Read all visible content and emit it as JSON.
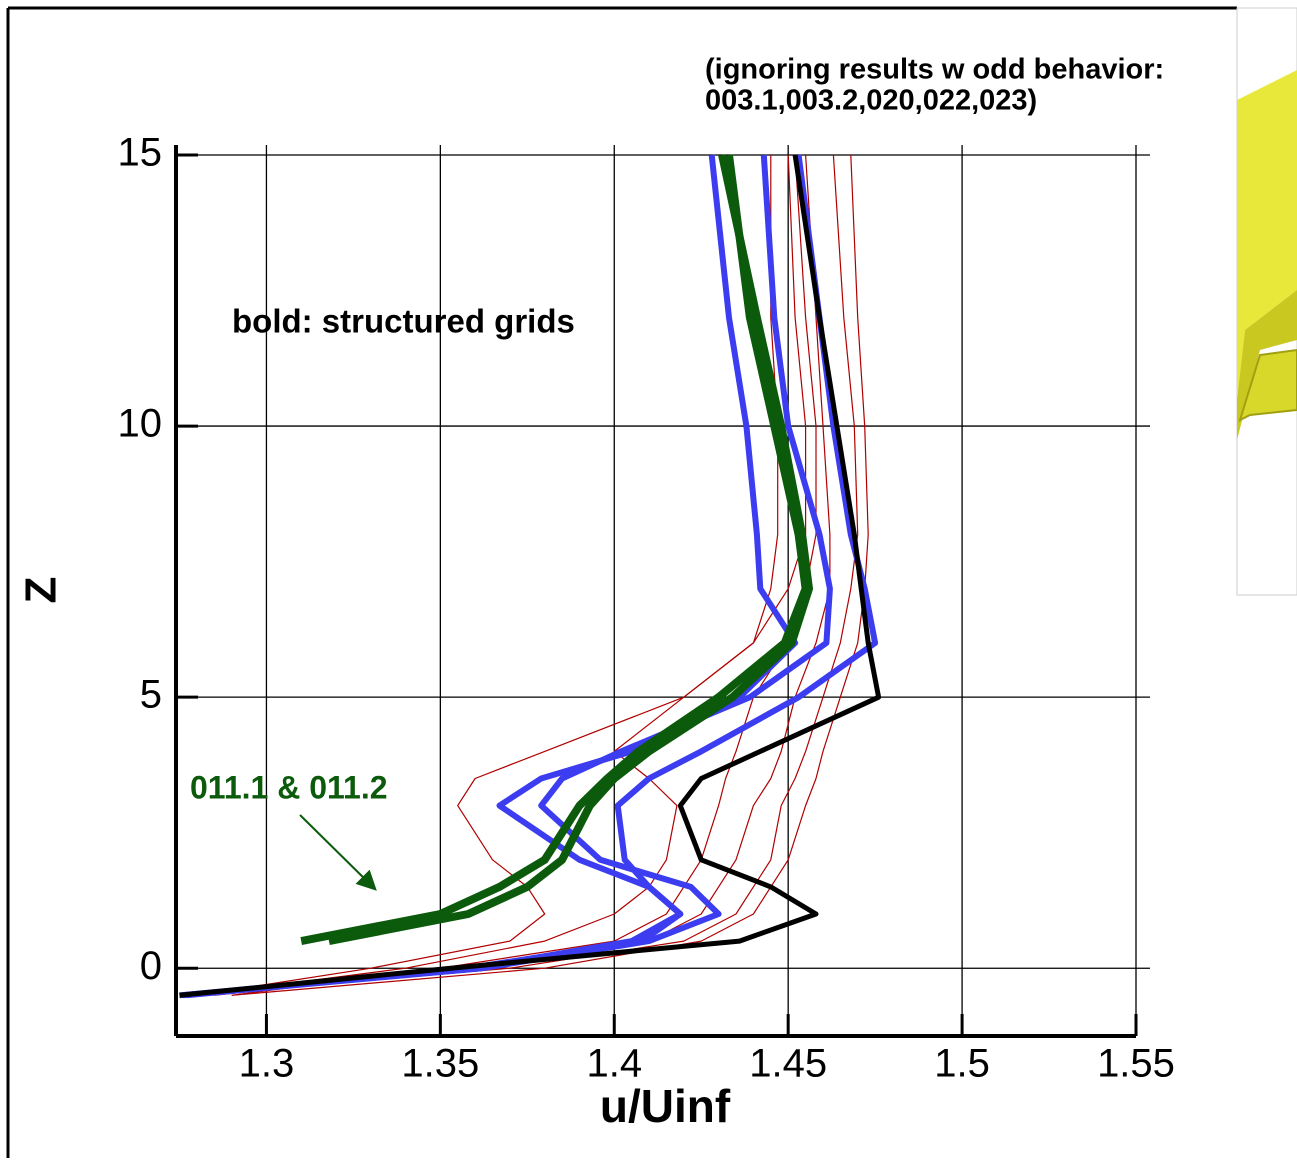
{
  "chart_data": {
    "type": "line",
    "annotation_top": [
      "(ignoring results w odd behavior:",
      "003.1,003.2,020,022,023)"
    ],
    "annotation_bold": "bold: structured grids",
    "annotation_green": "011.1 & 011.2",
    "x_label": "u/Uinf",
    "y_label": "Z",
    "xlim": [
      1.274,
      1.55
    ],
    "ylim": [
      -1.25,
      15
    ],
    "xticks": [
      1.3,
      1.35,
      1.4,
      1.45,
      1.5,
      1.55
    ],
    "yticks": [
      0,
      5,
      10,
      15
    ],
    "grid": true,
    "y": [
      -0.5,
      0,
      0.5,
      1,
      1.5,
      2,
      3,
      3.5,
      4,
      5,
      6,
      7,
      8,
      10,
      12,
      15
    ],
    "series": [
      {
        "color": "#b00000",
        "line_width": 1.2,
        "values": [
          1.28,
          1.33,
          1.37,
          1.38,
          1.375,
          1.365,
          1.355,
          1.36,
          1.38,
          1.42,
          1.44,
          1.445,
          1.447,
          1.447,
          1.445,
          1.445
        ]
      },
      {
        "color": "#b00000",
        "line_width": 1.2,
        "values": [
          1.29,
          1.35,
          1.4,
          1.415,
          1.42,
          1.425,
          1.43,
          1.432,
          1.435,
          1.44,
          1.45,
          1.455,
          1.458,
          1.458,
          1.455,
          1.452
        ]
      },
      {
        "color": "#b00000",
        "line_width": 1.2,
        "values": [
          1.285,
          1.36,
          1.41,
          1.425,
          1.43,
          1.435,
          1.44,
          1.445,
          1.448,
          1.452,
          1.458,
          1.462,
          1.462,
          1.46,
          1.458,
          1.455
        ]
      },
      {
        "color": "#b00000",
        "line_width": 1.2,
        "values": [
          1.28,
          1.37,
          1.42,
          1.435,
          1.44,
          1.445,
          1.448,
          1.452,
          1.455,
          1.46,
          1.465,
          1.468,
          1.47,
          1.469,
          1.466,
          1.463
        ]
      },
      {
        "color": "#b00000",
        "line_width": 1.2,
        "values": [
          1.29,
          1.38,
          1.425,
          1.44,
          1.445,
          1.45,
          1.455,
          1.458,
          1.46,
          1.465,
          1.47,
          1.472,
          1.473,
          1.472,
          1.47,
          1.468
        ]
      },
      {
        "color": "#b00000",
        "line_width": 1.2,
        "values": [
          1.28,
          1.34,
          1.38,
          1.4,
          1.41,
          1.415,
          1.418,
          1.41,
          1.4,
          1.42,
          1.44,
          1.45,
          1.455,
          1.455,
          1.452,
          1.45
        ]
      },
      {
        "color": "#3c3cf0",
        "line_width": 6,
        "values": [
          1.275,
          1.36,
          1.405,
          1.419,
          1.41,
          1.39,
          1.367,
          1.379,
          1.405,
          1.436,
          1.452,
          1.442,
          1.441,
          1.438,
          1.433,
          1.428
        ]
      },
      {
        "color": "#3c3cf0",
        "line_width": 6,
        "values": [
          1.276,
          1.362,
          1.41,
          1.43,
          1.422,
          1.396,
          1.379,
          1.385,
          1.402,
          1.439,
          1.461,
          1.462,
          1.459,
          1.45,
          1.446,
          1.443
        ]
      },
      {
        "color": "#3c3cf0",
        "line_width": 6,
        "values": [
          1.277,
          1.358,
          1.408,
          1.419,
          1.41,
          1.403,
          1.401,
          1.41,
          1.425,
          1.453,
          1.475,
          1.472,
          1.468,
          1.463,
          1.459,
          1.453
        ]
      },
      {
        "color": "#0c5a0c",
        "line_width": 8,
        "values": [
          null,
          null,
          1.31,
          1.35,
          1.367,
          1.38,
          1.39,
          1.398,
          1.407,
          1.43,
          1.449,
          1.455,
          1.453,
          1.446,
          1.439,
          1.433
        ]
      },
      {
        "color": "#0c5a0c",
        "line_width": 8,
        "values": [
          null,
          null,
          1.318,
          1.358,
          1.375,
          1.385,
          1.393,
          1.4,
          1.41,
          1.434,
          1.451,
          1.456,
          1.454,
          1.448,
          1.441,
          1.431
        ]
      },
      {
        "color": "#000000",
        "line_width": 5,
        "values": [
          1.275,
          1.353,
          1.436,
          1.458,
          1.445,
          1.425,
          1.419,
          1.425,
          1.442,
          1.476,
          1.473,
          1.471,
          1.469,
          1.464,
          1.459,
          1.452
        ]
      }
    ]
  }
}
